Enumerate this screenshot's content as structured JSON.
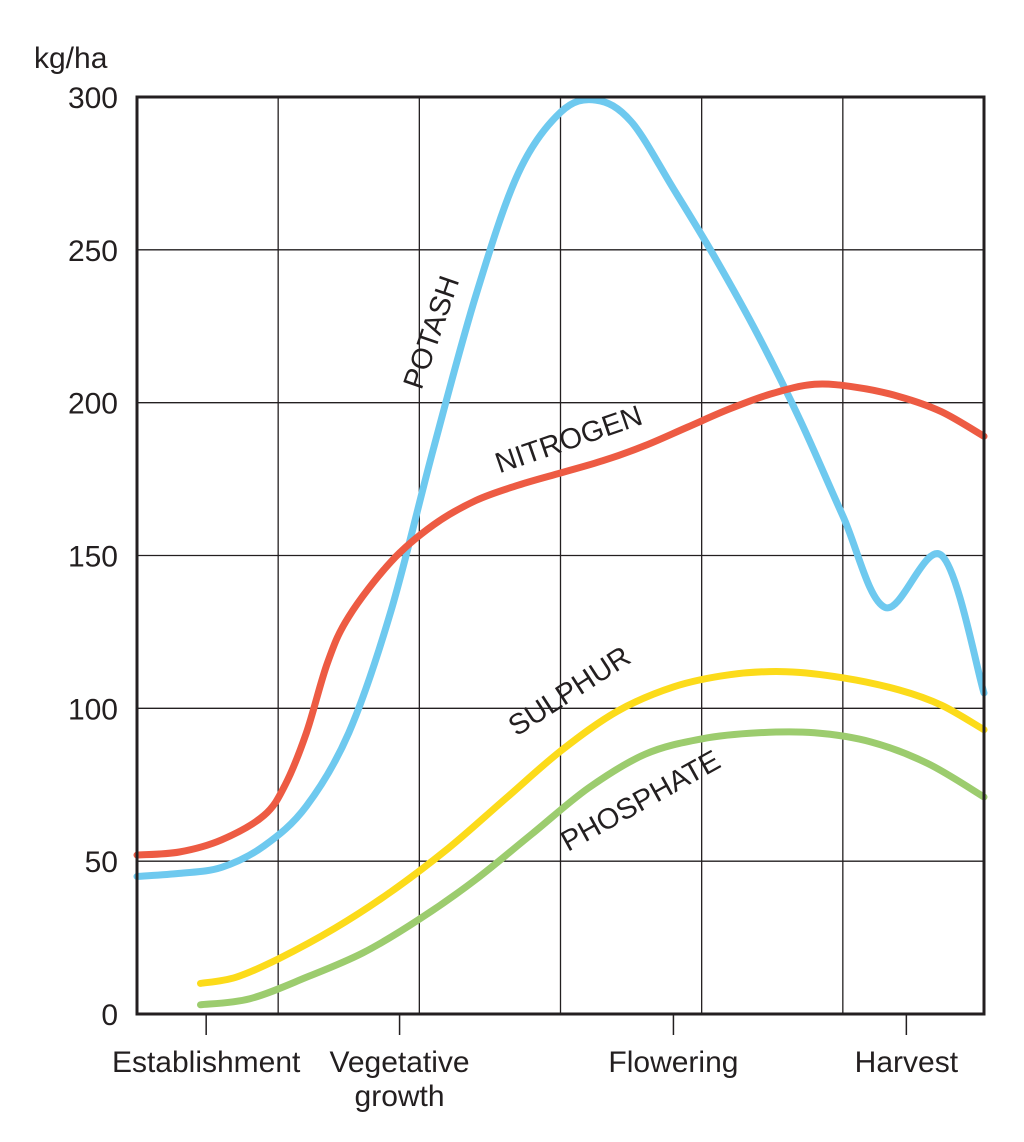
{
  "chart_data": {
    "type": "line",
    "unit_label": "kg/ha",
    "ylim": [
      0,
      300
    ],
    "y_ticks": [
      0,
      50,
      100,
      150,
      200,
      250,
      300
    ],
    "x_range": [
      0,
      6
    ],
    "grid": true,
    "stages": [
      {
        "label": [
          "Establishment"
        ],
        "x": 0.49
      },
      {
        "label": [
          "Vegetative",
          "growth"
        ],
        "x": 1.86
      },
      {
        "label": [
          "Flowering"
        ],
        "x": 3.8
      },
      {
        "label": [
          "Harvest"
        ],
        "x": 5.45
      }
    ],
    "series": [
      {
        "name": "POTASH",
        "color": "#6ec9ef",
        "label_at": {
          "x": 2.15,
          "y": 222,
          "angle": -71
        },
        "points": [
          [
            0,
            45
          ],
          [
            0.3,
            46
          ],
          [
            0.6,
            48
          ],
          [
            0.9,
            55
          ],
          [
            1.2,
            68
          ],
          [
            1.5,
            92
          ],
          [
            1.8,
            132
          ],
          [
            2.1,
            185
          ],
          [
            2.4,
            235
          ],
          [
            2.7,
            275
          ],
          [
            3.0,
            295
          ],
          [
            3.25,
            299
          ],
          [
            3.5,
            292
          ],
          [
            3.8,
            270
          ],
          [
            4.1,
            247
          ],
          [
            4.4,
            222
          ],
          [
            4.7,
            194
          ],
          [
            5.0,
            163
          ],
          [
            5.3,
            133
          ],
          [
            5.7,
            150
          ],
          [
            6.0,
            105
          ]
        ]
      },
      {
        "name": "NITROGEN",
        "color": "#ed5b43",
        "label_at": {
          "x": 3.08,
          "y": 185,
          "angle": -19
        },
        "points": [
          [
            0,
            52
          ],
          [
            0.3,
            53
          ],
          [
            0.6,
            57
          ],
          [
            0.9,
            65
          ],
          [
            1.05,
            75
          ],
          [
            1.2,
            92
          ],
          [
            1.35,
            115
          ],
          [
            1.5,
            130
          ],
          [
            1.8,
            148
          ],
          [
            2.1,
            160
          ],
          [
            2.4,
            168
          ],
          [
            2.7,
            173
          ],
          [
            3.0,
            177
          ],
          [
            3.3,
            181
          ],
          [
            3.6,
            186
          ],
          [
            3.9,
            192
          ],
          [
            4.2,
            198
          ],
          [
            4.5,
            203
          ],
          [
            4.8,
            206
          ],
          [
            5.1,
            205
          ],
          [
            5.4,
            202
          ],
          [
            5.7,
            197
          ],
          [
            6.0,
            189
          ]
        ]
      },
      {
        "name": "SULPHUR",
        "color": "#fcdb1a",
        "label_at": {
          "x": 3.1,
          "y": 103,
          "angle": -33
        },
        "points": [
          [
            0.45,
            10
          ],
          [
            0.7,
            12
          ],
          [
            1.0,
            18
          ],
          [
            1.4,
            28
          ],
          [
            1.8,
            40
          ],
          [
            2.2,
            54
          ],
          [
            2.6,
            70
          ],
          [
            3.0,
            86
          ],
          [
            3.4,
            99
          ],
          [
            3.8,
            107
          ],
          [
            4.2,
            111
          ],
          [
            4.6,
            112
          ],
          [
            5.0,
            110
          ],
          [
            5.4,
            106
          ],
          [
            5.7,
            101
          ],
          [
            6.0,
            93
          ]
        ]
      },
      {
        "name": "PHOSPHATE",
        "color": "#9ccc6e",
        "label_at": {
          "x": 3.6,
          "y": 67,
          "angle": -29
        },
        "points": [
          [
            0.45,
            3
          ],
          [
            0.8,
            5
          ],
          [
            1.2,
            12
          ],
          [
            1.6,
            20
          ],
          [
            2.0,
            31
          ],
          [
            2.4,
            44
          ],
          [
            2.8,
            59
          ],
          [
            3.2,
            74
          ],
          [
            3.6,
            85
          ],
          [
            4.0,
            90
          ],
          [
            4.4,
            92
          ],
          [
            4.8,
            92
          ],
          [
            5.2,
            89
          ],
          [
            5.6,
            82
          ],
          [
            6.0,
            71
          ]
        ]
      }
    ]
  }
}
